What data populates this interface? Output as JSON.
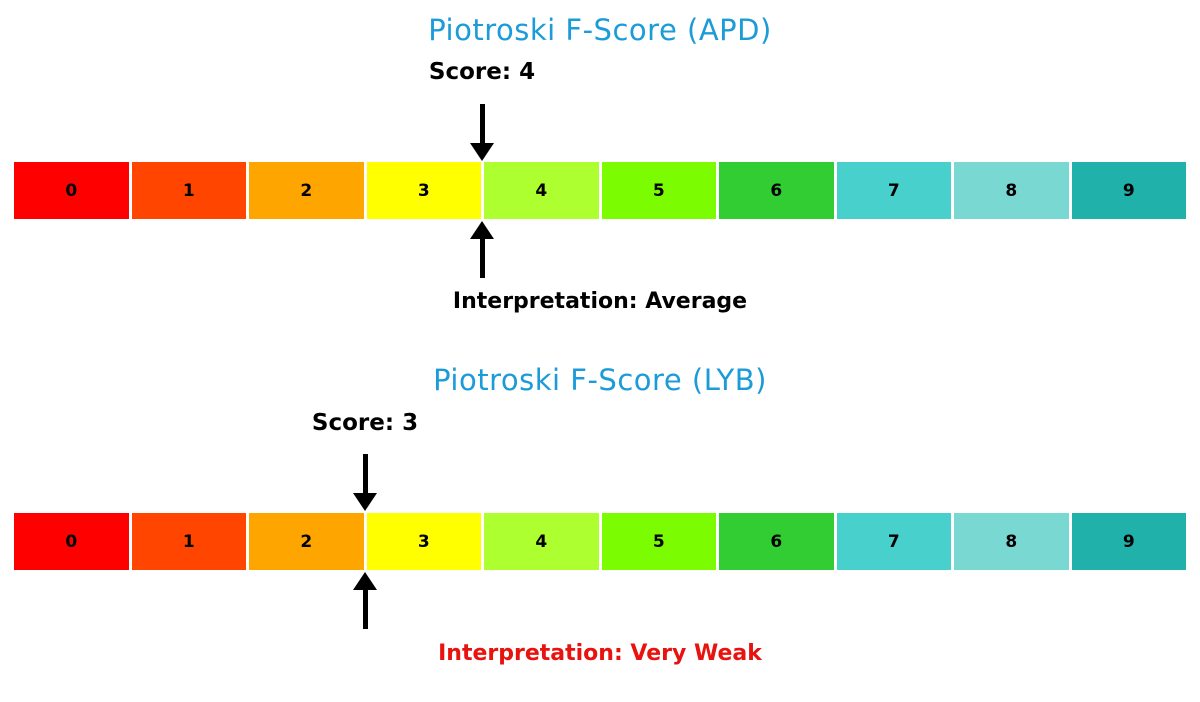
{
  "colors": {
    "title": "#1b9cd8",
    "text": "#000000",
    "interpretation_average": "#000000",
    "interpretation_very_weak": "#e8120e"
  },
  "scale": {
    "labels": [
      "0",
      "1",
      "2",
      "3",
      "4",
      "5",
      "6",
      "7",
      "8",
      "9"
    ],
    "colors": [
      "#ff0000",
      "#ff4500",
      "#ffa500",
      "#ffff00",
      "#adff2f",
      "#7cfc00",
      "#32cd32",
      "#48d1cc",
      "#79d9d2",
      "#20b2aa"
    ]
  },
  "charts": [
    {
      "title": "Piotroski F-Score (APD)",
      "score": 4,
      "score_label": "Score: 4",
      "interpretation": "Interpretation: Average",
      "interpretation_color": "#000000"
    },
    {
      "title": "Piotroski F-Score (LYB)",
      "score": 3,
      "score_label": "Score: 3",
      "interpretation": "Interpretation: Very Weak",
      "interpretation_color": "#e8120e"
    }
  ],
  "chart_data": [
    {
      "type": "bar",
      "title": "Piotroski F-Score (APD)",
      "categories": [
        "0",
        "1",
        "2",
        "3",
        "4",
        "5",
        "6",
        "7",
        "8",
        "9"
      ],
      "values": [
        1,
        1,
        1,
        1,
        1,
        1,
        1,
        1,
        1,
        1
      ],
      "segment_colors": [
        "#ff0000",
        "#ff4500",
        "#ffa500",
        "#ffff00",
        "#adff2f",
        "#7cfc00",
        "#32cd32",
        "#48d1cc",
        "#79d9d2",
        "#20b2aa"
      ],
      "score_marker": 4,
      "annotations": [
        "Score: 4",
        "Interpretation: Average"
      ],
      "xlabel": "",
      "ylabel": "",
      "xlim": [
        0,
        10
      ],
      "legend": "none",
      "grid": false
    },
    {
      "type": "bar",
      "title": "Piotroski F-Score (LYB)",
      "categories": [
        "0",
        "1",
        "2",
        "3",
        "4",
        "5",
        "6",
        "7",
        "8",
        "9"
      ],
      "values": [
        1,
        1,
        1,
        1,
        1,
        1,
        1,
        1,
        1,
        1
      ],
      "segment_colors": [
        "#ff0000",
        "#ff4500",
        "#ffa500",
        "#ffff00",
        "#adff2f",
        "#7cfc00",
        "#32cd32",
        "#48d1cc",
        "#79d9d2",
        "#20b2aa"
      ],
      "score_marker": 3,
      "annotations": [
        "Score: 3",
        "Interpretation: Very Weak"
      ],
      "xlabel": "",
      "ylabel": "",
      "xlim": [
        0,
        10
      ],
      "legend": "none",
      "grid": false
    }
  ]
}
